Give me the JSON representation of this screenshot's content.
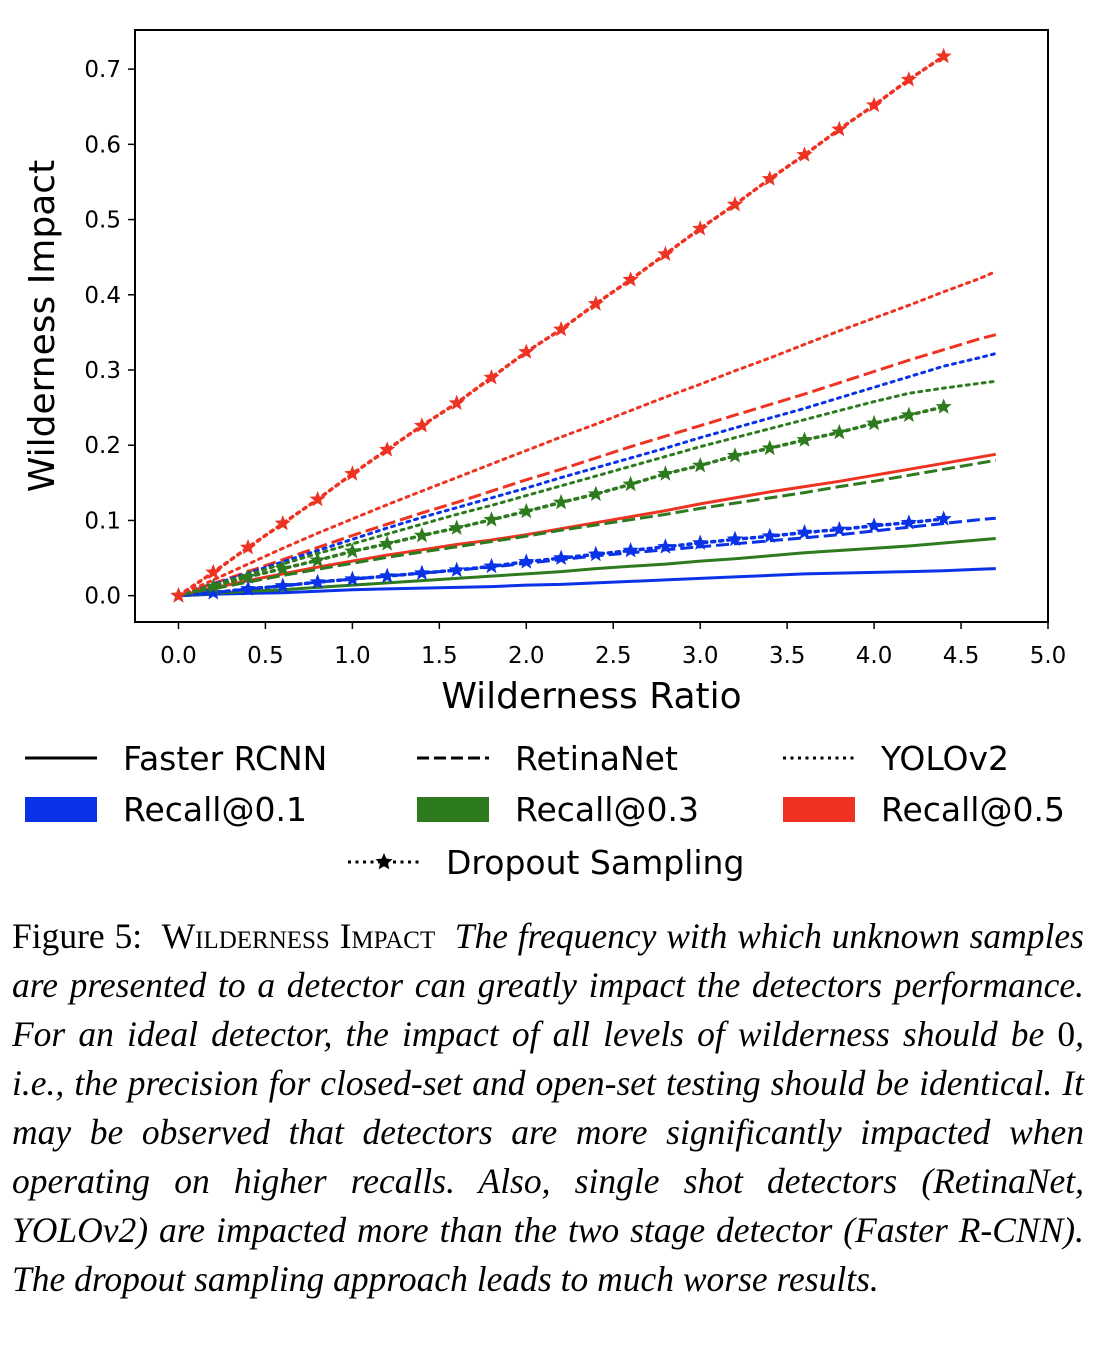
{
  "chart_data": {
    "type": "line",
    "xlabel": "Wilderness Ratio",
    "ylabel": "Wilderness Impact",
    "xlim": [
      -0.25,
      5.0
    ],
    "ylim": [
      -0.035,
      0.752
    ],
    "xticks": [
      "0.0",
      "0.5",
      "1.0",
      "1.5",
      "2.0",
      "2.5",
      "3.0",
      "3.5",
      "4.0",
      "4.5",
      "5.0"
    ],
    "yticks": [
      "0.0",
      "0.1",
      "0.2",
      "0.3",
      "0.4",
      "0.5",
      "0.6",
      "0.7"
    ],
    "grid": false,
    "x": [
      0.0,
      0.2,
      0.4,
      0.6,
      0.8,
      1.0,
      1.2,
      1.4,
      1.6,
      1.8,
      2.0,
      2.2,
      2.4,
      2.6,
      2.8,
      3.0,
      3.2,
      3.4,
      3.6,
      3.8,
      4.0,
      4.2,
      4.4,
      4.6,
      4.7
    ],
    "series": [
      {
        "detector": "Faster RCNN",
        "recall": "Recall@0.1",
        "color": "#0a32e6",
        "style": "solid",
        "values": [
          0.0,
          0.002,
          0.003,
          0.004,
          0.006,
          0.008,
          0.009,
          0.01,
          0.011,
          0.012,
          0.014,
          0.015,
          0.017,
          0.019,
          0.021,
          0.023,
          0.025,
          0.027,
          0.029,
          0.03,
          0.031,
          0.032,
          0.033,
          0.035,
          0.036
        ]
      },
      {
        "detector": "Faster RCNN",
        "recall": "Recall@0.3",
        "color": "#2e7a1e",
        "style": "solid",
        "values": [
          0.0,
          0.003,
          0.006,
          0.008,
          0.011,
          0.014,
          0.017,
          0.02,
          0.023,
          0.026,
          0.029,
          0.032,
          0.036,
          0.039,
          0.042,
          0.046,
          0.049,
          0.053,
          0.057,
          0.06,
          0.063,
          0.066,
          0.07,
          0.074,
          0.076
        ]
      },
      {
        "detector": "Faster RCNN",
        "recall": "Recall@0.5",
        "color": "#ee3322",
        "style": "solid",
        "values": [
          0.0,
          0.01,
          0.02,
          0.029,
          0.038,
          0.046,
          0.054,
          0.061,
          0.068,
          0.074,
          0.081,
          0.089,
          0.097,
          0.105,
          0.113,
          0.122,
          0.13,
          0.138,
          0.145,
          0.152,
          0.16,
          0.168,
          0.176,
          0.184,
          0.188
        ]
      },
      {
        "detector": "RetinaNet",
        "recall": "Recall@0.1",
        "color": "#0a32e6",
        "style": "dashed",
        "values": [
          0.0,
          0.004,
          0.009,
          0.013,
          0.018,
          0.022,
          0.026,
          0.03,
          0.034,
          0.038,
          0.043,
          0.048,
          0.053,
          0.057,
          0.061,
          0.065,
          0.069,
          0.073,
          0.077,
          0.081,
          0.086,
          0.091,
          0.096,
          0.101,
          0.103
        ]
      },
      {
        "detector": "RetinaNet",
        "recall": "Recall@0.3",
        "color": "#2e7a1e",
        "style": "dashed",
        "values": [
          0.0,
          0.009,
          0.018,
          0.027,
          0.035,
          0.043,
          0.051,
          0.058,
          0.065,
          0.072,
          0.079,
          0.087,
          0.094,
          0.101,
          0.108,
          0.116,
          0.123,
          0.13,
          0.137,
          0.145,
          0.152,
          0.16,
          0.168,
          0.176,
          0.18
        ]
      },
      {
        "detector": "RetinaNet",
        "recall": "Recall@0.5",
        "color": "#ee3322",
        "style": "dashed",
        "values": [
          0.0,
          0.016,
          0.032,
          0.048,
          0.064,
          0.08,
          0.095,
          0.11,
          0.124,
          0.139,
          0.154,
          0.168,
          0.183,
          0.198,
          0.212,
          0.226,
          0.24,
          0.254,
          0.268,
          0.283,
          0.298,
          0.313,
          0.327,
          0.341,
          0.347
        ]
      },
      {
        "detector": "YOLOv2",
        "recall": "Recall@0.1",
        "color": "#0a32e6",
        "style": "dotted",
        "values": [
          0.0,
          0.015,
          0.03,
          0.045,
          0.06,
          0.075,
          0.09,
          0.104,
          0.117,
          0.13,
          0.143,
          0.157,
          0.17,
          0.183,
          0.196,
          0.21,
          0.223,
          0.236,
          0.249,
          0.263,
          0.277,
          0.291,
          0.305,
          0.316,
          0.322
        ]
      },
      {
        "detector": "YOLOv2",
        "recall": "Recall@0.3",
        "color": "#2e7a1e",
        "style": "dotted",
        "values": [
          0.0,
          0.014,
          0.028,
          0.042,
          0.056,
          0.069,
          0.082,
          0.095,
          0.108,
          0.12,
          0.133,
          0.146,
          0.159,
          0.172,
          0.185,
          0.198,
          0.21,
          0.222,
          0.234,
          0.246,
          0.258,
          0.269,
          0.276,
          0.282,
          0.285
        ]
      },
      {
        "detector": "YOLOv2",
        "recall": "Recall@0.5",
        "color": "#ee3322",
        "style": "dotted",
        "values": [
          0.0,
          0.021,
          0.042,
          0.063,
          0.083,
          0.102,
          0.121,
          0.139,
          0.157,
          0.175,
          0.193,
          0.211,
          0.228,
          0.246,
          0.264,
          0.281,
          0.299,
          0.316,
          0.334,
          0.352,
          0.369,
          0.386,
          0.404,
          0.421,
          0.431
        ]
      }
    ],
    "dropout_series": [
      {
        "recall": "Recall@0.1",
        "color": "#0a32e6",
        "x": [
          0.0,
          0.2,
          0.4,
          0.6,
          0.8,
          1.0,
          1.2,
          1.4,
          1.6,
          1.8,
          2.0,
          2.2,
          2.4,
          2.6,
          2.8,
          3.0,
          3.2,
          3.4,
          3.6,
          3.8,
          4.0,
          4.2,
          4.4
        ],
        "values": [
          0.0,
          0.004,
          0.009,
          0.013,
          0.018,
          0.022,
          0.026,
          0.03,
          0.034,
          0.039,
          0.045,
          0.05,
          0.055,
          0.06,
          0.065,
          0.07,
          0.075,
          0.079,
          0.084,
          0.088,
          0.093,
          0.097,
          0.102
        ]
      },
      {
        "recall": "Recall@0.3",
        "color": "#2e7a1e",
        "x": [
          0.0,
          0.2,
          0.4,
          0.6,
          0.8,
          1.0,
          1.2,
          1.4,
          1.6,
          1.8,
          2.0,
          2.2,
          2.4,
          2.6,
          2.8,
          3.0,
          3.2,
          3.4,
          3.6,
          3.8,
          4.0,
          4.2,
          4.4
        ],
        "values": [
          0.0,
          0.012,
          0.025,
          0.036,
          0.047,
          0.059,
          0.069,
          0.08,
          0.09,
          0.101,
          0.112,
          0.124,
          0.135,
          0.148,
          0.162,
          0.173,
          0.186,
          0.196,
          0.207,
          0.217,
          0.229,
          0.24,
          0.251
        ]
      },
      {
        "recall": "Recall@0.5",
        "color": "#ee3322",
        "x": [
          0.0,
          0.2,
          0.4,
          0.6,
          0.8,
          1.0,
          1.2,
          1.4,
          1.6,
          1.8,
          2.0,
          2.2,
          2.4,
          2.6,
          2.8,
          3.0,
          3.2,
          3.4,
          3.6,
          3.8,
          4.0,
          4.2,
          4.4
        ],
        "values": [
          0.0,
          0.031,
          0.064,
          0.096,
          0.128,
          0.162,
          0.194,
          0.226,
          0.256,
          0.29,
          0.324,
          0.354,
          0.388,
          0.42,
          0.454,
          0.488,
          0.52,
          0.554,
          0.586,
          0.62,
          0.652,
          0.686,
          0.717
        ]
      }
    ],
    "legend": {
      "placement": "below",
      "entries": [
        {
          "label": "Faster RCNN",
          "kind": "line",
          "style": "solid",
          "color": "#000000"
        },
        {
          "label": "RetinaNet",
          "kind": "line",
          "style": "dashed",
          "color": "#000000"
        },
        {
          "label": "YOLOv2",
          "kind": "line",
          "style": "dotted",
          "color": "#000000"
        },
        {
          "label": "Recall@0.1",
          "kind": "patch",
          "color": "#0a32e6"
        },
        {
          "label": "Recall@0.3",
          "kind": "patch",
          "color": "#2e7a1e"
        },
        {
          "label": "Recall@0.5",
          "kind": "patch",
          "color": "#ee3322"
        },
        {
          "label": "Dropout Sampling",
          "kind": "star-line",
          "style": "dotted",
          "color": "#000000"
        }
      ]
    }
  },
  "caption": {
    "label": "Figure 5:",
    "title": "Wilderness Impact",
    "body_part1": "The frequency with which unknown samples are presented to a detector can greatly impact the detectors performance. For an ideal detector, the impact of all levels of wilderness should be ",
    "zero": "0",
    "body_part2": ", i.e., the precision for closed-set and open-set testing should be identical. It may be observed that detectors are more significantly impacted when operating on higher recalls. Also, single shot detectors (RetinaNet, YOLOv2) are impacted more than the two stage detector (Faster R-CNN). The dropout sampling approach leads to much worse results."
  }
}
